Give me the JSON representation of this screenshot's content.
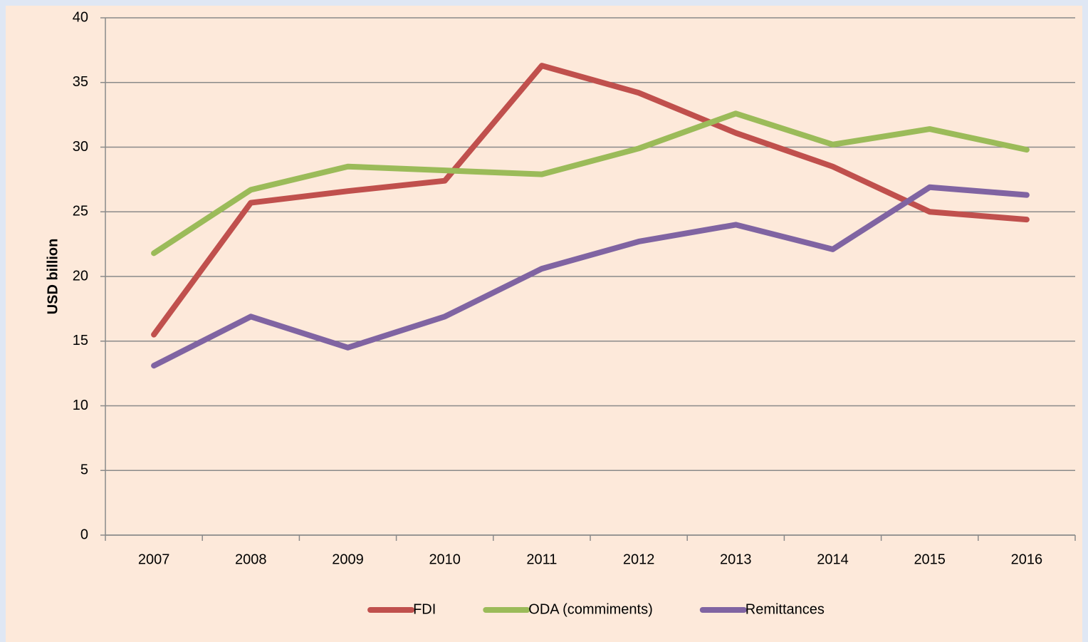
{
  "chart_data": {
    "type": "line",
    "y_label": "USD billion",
    "categories": [
      "2007",
      "2008",
      "2009",
      "2010",
      "2011",
      "2012",
      "2013",
      "2014",
      "2015",
      "2016"
    ],
    "series": [
      {
        "name": "FDI",
        "color": "#c0504d",
        "values": [
          15.5,
          25.7,
          26.6,
          27.4,
          36.3,
          34.2,
          31.1,
          28.5,
          25.0,
          24.4
        ]
      },
      {
        "name": "ODA (commiments)",
        "color": "#9bbb59",
        "values": [
          21.8,
          26.7,
          28.5,
          28.2,
          27.9,
          29.9,
          32.6,
          30.2,
          31.4,
          29.8
        ]
      },
      {
        "name": "Remittances",
        "color": "#8064a2",
        "values": [
          13.1,
          16.9,
          14.5,
          16.9,
          20.6,
          22.7,
          24.0,
          22.1,
          26.9,
          26.3
        ]
      }
    ],
    "ylim": [
      0,
      40
    ],
    "yticks": [
      0,
      5,
      10,
      15,
      20,
      25,
      30,
      35,
      40
    ],
    "grid": true,
    "legend": "bottom"
  }
}
